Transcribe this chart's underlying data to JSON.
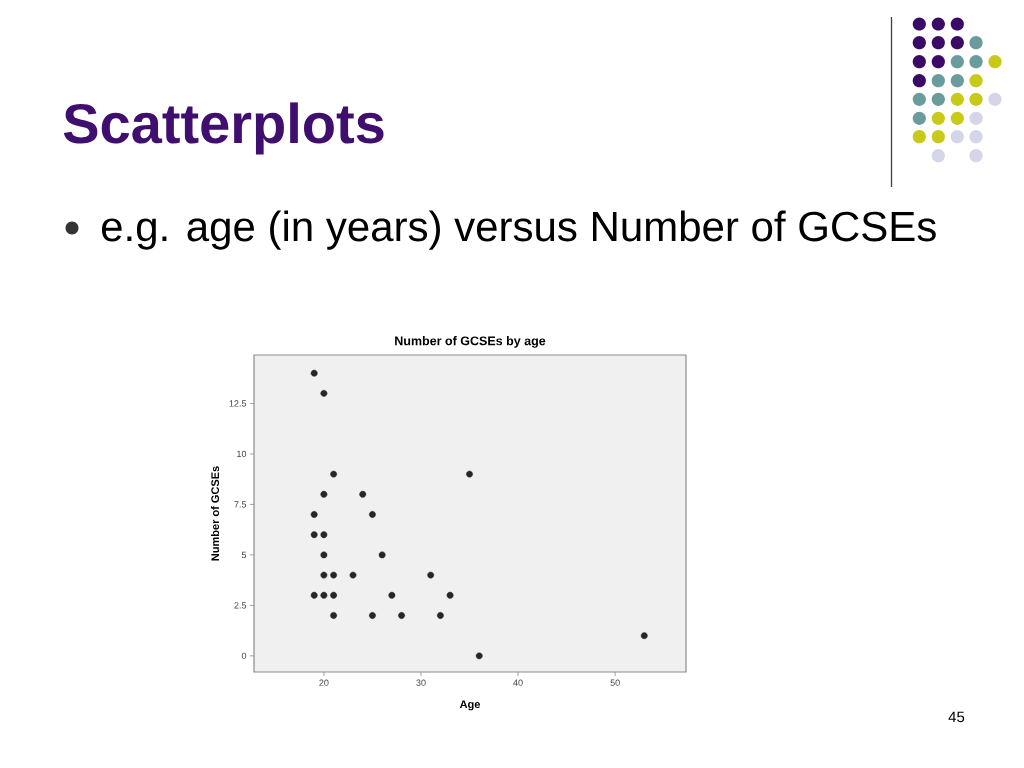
{
  "chart_data": {
    "type": "scatter",
    "title": "Number of GCSEs by age",
    "xlabel": "Age",
    "ylabel": "Number of GCSEs",
    "annotations": [
      "Scatterplots",
      "e.g. age (in years) versus Number of GCSEs",
      "45"
    ],
    "x": [
      19,
      20,
      21,
      20,
      24,
      19,
      25,
      35,
      19,
      20,
      20,
      26,
      20,
      21,
      23,
      31,
      19,
      20,
      21,
      27,
      33,
      21,
      25,
      28,
      32,
      36,
      53
    ],
    "values": [
      14,
      13,
      9,
      8,
      8,
      7,
      7,
      9,
      6,
      6,
      5,
      5,
      4,
      4,
      4,
      4,
      3,
      3,
      3,
      3,
      3,
      2,
      2,
      2,
      2,
      0,
      1
    ],
    "color": "#262626",
    "marker": "circle",
    "xlim": [
      12.8,
      57.3
    ],
    "ylim": [
      -0.8,
      14.9
    ],
    "xticks": [
      20,
      30,
      40,
      50
    ],
    "yticks": [
      0,
      2.5,
      5,
      7.5,
      10,
      12.5
    ]
  }
}
